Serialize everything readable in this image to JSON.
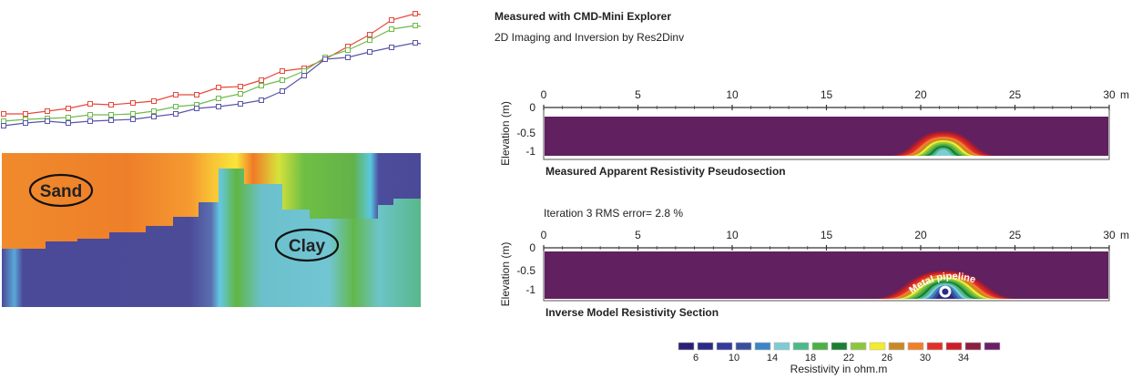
{
  "header": {
    "title": "Measured with CMD-Mini Explorer",
    "subtitle": "2D Imaging and Inversion by Res2Dinv"
  },
  "left_panel": {
    "labels": [
      "Sand",
      "Clay"
    ]
  },
  "chart_data": [
    {
      "type": "line",
      "series": [
        {
          "color": "#e8483c",
          "marker": "square",
          "values": [
            125,
            125,
            122,
            119,
            114,
            115,
            113,
            111,
            104,
            104,
            96,
            95,
            88,
            78,
            75,
            65,
            51,
            38,
            22,
            15
          ]
        },
        {
          "color": "#6dbb4a",
          "marker": "square",
          "values": [
            133,
            131,
            130,
            129,
            126,
            126,
            125,
            122,
            117,
            115,
            108,
            103,
            94,
            88,
            78,
            63,
            55,
            44,
            32,
            28
          ]
        },
        {
          "color": "#5a55a8",
          "marker": "square",
          "values": [
            138,
            135,
            133,
            135,
            133,
            132,
            131,
            128,
            125,
            119,
            117,
            114,
            110,
            100,
            83,
            65,
            63,
            57,
            52,
            47
          ]
        }
      ]
    },
    {
      "type": "heatmap",
      "title": "Measured Apparent Resistivity Pseudosection",
      "ylabel": "Elevation (m)",
      "x_ticks": [
        "0",
        "5",
        "10",
        "15",
        "20",
        "25",
        "30"
      ],
      "x_unit": "m",
      "y_ticks": [
        "0",
        "-0.5",
        "-1"
      ],
      "xlim": [
        0,
        30
      ],
      "background_color": "#61205f",
      "anomaly": {
        "center_m": 21.2,
        "x_range_m": [
          18.3,
          24.2
        ],
        "top_elevation_m": -0.45
      }
    },
    {
      "type": "heatmap",
      "title": "Inverse Model Resistivity Section",
      "note": "Iteration 3 RMS error= 2.8 %",
      "annotation": "Metal pipeline",
      "ylabel": "Elevation (m)",
      "x_ticks": [
        "0",
        "5",
        "10",
        "15",
        "20",
        "25",
        "30"
      ],
      "x_unit": "m",
      "y_ticks": [
        "0",
        "-0.5",
        "-1"
      ],
      "xlim": [
        0,
        30
      ],
      "background_color": "#61205f",
      "anomaly": {
        "center_m": 21.3,
        "x_range_m": [
          17.3,
          25.2
        ],
        "top_elevation_m": -0.5,
        "pipe_position_m": [
          21.3,
          -1.05
        ]
      }
    }
  ],
  "legend": {
    "title": "Resistivity in ohm.m",
    "tick_labels": [
      "6",
      "10",
      "14",
      "18",
      "22",
      "26",
      "30",
      "34"
    ],
    "colors": [
      "#2a1f74",
      "#2b2b86",
      "#34399a",
      "#3a4f9c",
      "#3d85c6",
      "#7fcbd3",
      "#4db88a",
      "#4cb047",
      "#1d7e33",
      "#8cc63f",
      "#f2ec2a",
      "#c8892a",
      "#ef7f2a",
      "#e0302a",
      "#cc1f25",
      "#8b1f3f",
      "#6b1f66"
    ]
  }
}
